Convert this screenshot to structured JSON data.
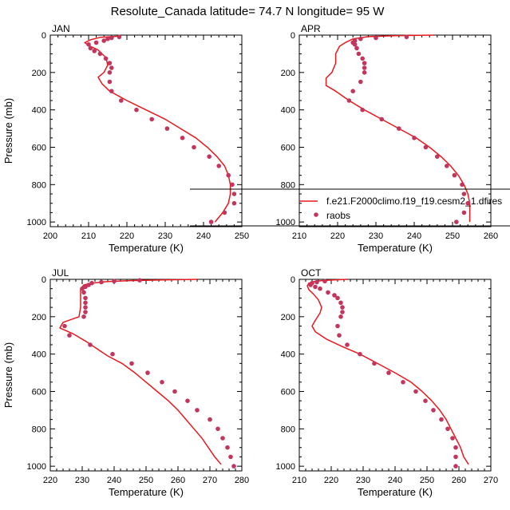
{
  "title": "Resolute_Canada  latitude= 74.7 N longitude= 95 W",
  "colors": {
    "model": "#e8191e",
    "obs": "#c2355d",
    "axis": "#000000"
  },
  "legend": {
    "placement": "lower-right of APR panel",
    "model_label": "f.e21.F2000climo.f19_f19.cesm2_1.dfires",
    "obs_label": "raobs"
  },
  "chart_data": [
    {
      "type": "line",
      "panel": "JAN",
      "xlabel": "Temperature (K)",
      "ylabel": "Pressure (mb)",
      "xlim": [
        200,
        250
      ],
      "xticks": [
        "200",
        "210",
        "220",
        "230",
        "240",
        "250"
      ],
      "ylim": [
        0,
        1025
      ],
      "yreversed": true,
      "yticks": [
        "0",
        "200",
        "400",
        "600",
        "800",
        "1000"
      ],
      "grid": false,
      "series": [
        {
          "name": "f.e21.F2000climo.f19_f19.cesm2_1.dfires",
          "kind": "line",
          "points": [
            [
              218,
              5
            ],
            [
              213,
              12
            ],
            [
              210.5,
              25
            ],
            [
              209,
              40
            ],
            [
              210,
              55
            ],
            [
              212.5,
              80
            ],
            [
              214.5,
              120
            ],
            [
              215,
              160
            ],
            [
              214,
              200
            ],
            [
              212.5,
              225
            ],
            [
              213.5,
              260
            ],
            [
              215.5,
              300
            ],
            [
              220,
              350
            ],
            [
              225,
              400
            ],
            [
              230,
              450
            ],
            [
              234,
              500
            ],
            [
              238,
              550
            ],
            [
              241,
              600
            ],
            [
              243.5,
              650
            ],
            [
              245.5,
              700
            ],
            [
              246.5,
              750
            ],
            [
              247,
              800
            ],
            [
              247,
              850
            ],
            [
              246.5,
              900
            ],
            [
              245,
              950
            ],
            [
              243,
              1000
            ]
          ]
        },
        {
          "name": "raobs",
          "kind": "scatter",
          "points": [
            [
              218,
              10
            ],
            [
              216,
              15
            ],
            [
              215,
              20
            ],
            [
              214,
              30
            ],
            [
              212,
              40
            ],
            [
              210,
              50
            ],
            [
              210.5,
              70
            ],
            [
              211.5,
              85
            ],
            [
              213,
              100
            ],
            [
              214.5,
              125
            ],
            [
              215.5,
              150
            ],
            [
              216,
              175
            ],
            [
              215.5,
              200
            ],
            [
              215.5,
              250
            ],
            [
              216,
              300
            ],
            [
              218.5,
              350
            ],
            [
              222.5,
              400
            ],
            [
              226.5,
              450
            ],
            [
              230.5,
              500
            ],
            [
              234.5,
              550
            ],
            [
              237.5,
              600
            ],
            [
              241.5,
              650
            ],
            [
              244,
              700
            ],
            [
              246.5,
              750
            ],
            [
              247.5,
              800
            ],
            [
              248,
              850
            ],
            [
              248,
              900
            ],
            [
              245.5,
              950
            ],
            [
              242,
              1000
            ]
          ]
        }
      ]
    },
    {
      "type": "line",
      "panel": "APR",
      "xlabel": "Temperature (K)",
      "ylabel": "",
      "xlim": [
        210,
        260
      ],
      "xticks": [
        "210",
        "220",
        "230",
        "240",
        "250",
        "260"
      ],
      "ylim": [
        0,
        1025
      ],
      "yreversed": true,
      "yticks": [
        "0",
        "200",
        "400",
        "600",
        "800",
        "1000"
      ],
      "grid": false,
      "series": [
        {
          "name": "f.e21.F2000climo.f19_f19.cesm2_1.dfires",
          "kind": "line",
          "points": [
            [
              245,
              0
            ],
            [
              235,
              3
            ],
            [
              228,
              8
            ],
            [
              224,
              20
            ],
            [
              222,
              40
            ],
            [
              220.5,
              60
            ],
            [
              219.5,
              100
            ],
            [
              219.5,
              150
            ],
            [
              218.5,
              200
            ],
            [
              217,
              230
            ],
            [
              217,
              270
            ],
            [
              219.5,
              300
            ],
            [
              223,
              350
            ],
            [
              227,
              400
            ],
            [
              231.5,
              450
            ],
            [
              236,
              500
            ],
            [
              240.5,
              550
            ],
            [
              244,
              600
            ],
            [
              247,
              650
            ],
            [
              249.5,
              700
            ],
            [
              251.5,
              750
            ],
            [
              253,
              800
            ],
            [
              254,
              850
            ],
            [
              254.5,
              900
            ],
            [
              254.5,
              950
            ],
            [
              254.5,
              1000
            ]
          ]
        },
        {
          "name": "raobs",
          "kind": "scatter",
          "points": [
            [
              238,
              10
            ],
            [
              230,
              15
            ],
            [
              226,
              20
            ],
            [
              224.5,
              30
            ],
            [
              224,
              40
            ],
            [
              224.5,
              50
            ],
            [
              225,
              70
            ],
            [
              225.5,
              100
            ],
            [
              226.5,
              125
            ],
            [
              227,
              150
            ],
            [
              227,
              175
            ],
            [
              227,
              200
            ],
            [
              226,
              250
            ],
            [
              224,
              300
            ],
            [
              223,
              350
            ],
            [
              226.5,
              400
            ],
            [
              231.5,
              450
            ],
            [
              236,
              500
            ],
            [
              240,
              550
            ],
            [
              243,
              600
            ],
            [
              246,
              650
            ],
            [
              248.5,
              700
            ],
            [
              250.5,
              750
            ],
            [
              252.5,
              800
            ],
            [
              253,
              850
            ],
            [
              254,
              900
            ],
            [
              253,
              950
            ],
            [
              251,
              1000
            ]
          ]
        }
      ]
    },
    {
      "type": "line",
      "panel": "JUL",
      "xlabel": "Temperature (K)",
      "ylabel": "Pressure (mb)",
      "xlim": [
        220,
        280
      ],
      "xticks": [
        "220",
        "230",
        "240",
        "250",
        "260",
        "270",
        "280"
      ],
      "ylim": [
        0,
        1025
      ],
      "yreversed": true,
      "yticks": [
        "0",
        "200",
        "400",
        "600",
        "800",
        "1000"
      ],
      "grid": false,
      "series": [
        {
          "name": "f.e21.F2000climo.f19_f19.cesm2_1.dfires",
          "kind": "line",
          "points": [
            [
              266,
              0
            ],
            [
              255,
              3
            ],
            [
              245,
              7
            ],
            [
              238,
              12
            ],
            [
              233,
              20
            ],
            [
              230.5,
              30
            ],
            [
              229.5,
              50
            ],
            [
              229.5,
              100
            ],
            [
              229.5,
              150
            ],
            [
              229,
              200
            ],
            [
              224,
              230
            ],
            [
              223,
              260
            ],
            [
              227,
              290
            ],
            [
              231,
              330
            ],
            [
              234.5,
              370
            ],
            [
              238,
              410
            ],
            [
              242.5,
              450
            ],
            [
              246.5,
              500
            ],
            [
              250,
              550
            ],
            [
              253.5,
              600
            ],
            [
              257,
              650
            ],
            [
              260,
              700
            ],
            [
              262.5,
              750
            ],
            [
              265,
              800
            ],
            [
              267.5,
              850
            ],
            [
              269.5,
              900
            ],
            [
              271.5,
              950
            ],
            [
              273.5,
              990
            ]
          ]
        },
        {
          "name": "raobs",
          "kind": "scatter",
          "points": [
            [
              248,
              5
            ],
            [
              240,
              10
            ],
            [
              236,
              15
            ],
            [
              233,
              20
            ],
            [
              232,
              30
            ],
            [
              231,
              40
            ],
            [
              230,
              50
            ],
            [
              230.5,
              70
            ],
            [
              231,
              100
            ],
            [
              231,
              125
            ],
            [
              231,
              150
            ],
            [
              231,
              175
            ],
            [
              230.5,
              200
            ],
            [
              224.5,
              250
            ],
            [
              226,
              300
            ],
            [
              232.5,
              350
            ],
            [
              239.5,
              400
            ],
            [
              245.5,
              450
            ],
            [
              250.5,
              500
            ],
            [
              255,
              550
            ],
            [
              259,
              600
            ],
            [
              263,
              650
            ],
            [
              266,
              700
            ],
            [
              270,
              750
            ],
            [
              272.5,
              800
            ],
            [
              274,
              850
            ],
            [
              275.5,
              900
            ],
            [
              276.5,
              950
            ],
            [
              277.5,
              1000
            ]
          ]
        }
      ]
    },
    {
      "type": "line",
      "panel": "OCT",
      "xlabel": "Temperature (K)",
      "ylabel": "",
      "xlim": [
        210,
        270
      ],
      "xticks": [
        "210",
        "220",
        "230",
        "240",
        "250",
        "260",
        "270"
      ],
      "ylim": [
        0,
        1025
      ],
      "yreversed": true,
      "yticks": [
        "0",
        "200",
        "400",
        "600",
        "800",
        "1000"
      ],
      "grid": false,
      "series": [
        {
          "name": "f.e21.F2000climo.f19_f19.cesm2_1.dfires",
          "kind": "line",
          "points": [
            [
              225,
              0
            ],
            [
              218,
              5
            ],
            [
              214.5,
              12
            ],
            [
              213,
              20
            ],
            [
              212.5,
              35
            ],
            [
              213,
              55
            ],
            [
              214.5,
              80
            ],
            [
              216,
              110
            ],
            [
              217,
              150
            ],
            [
              216.5,
              180
            ],
            [
              215,
              220
            ],
            [
              214,
              250
            ],
            [
              215,
              280
            ],
            [
              218.5,
              320
            ],
            [
              223.5,
              360
            ],
            [
              229,
              400
            ],
            [
              234.5,
              450
            ],
            [
              240,
              500
            ],
            [
              245,
              550
            ],
            [
              248.5,
              600
            ],
            [
              251.5,
              650
            ],
            [
              254,
              700
            ],
            [
              256,
              750
            ],
            [
              257.5,
              800
            ],
            [
              259,
              850
            ],
            [
              260.5,
              900
            ],
            [
              261.5,
              950
            ],
            [
              263,
              990
            ]
          ]
        },
        {
          "name": "raobs",
          "kind": "scatter",
          "points": [
            [
              218,
              10
            ],
            [
              215.5,
              15
            ],
            [
              214,
              20
            ],
            [
              213.5,
              30
            ],
            [
              215,
              40
            ],
            [
              216.5,
              50
            ],
            [
              219,
              70
            ],
            [
              221,
              85
            ],
            [
              222,
              100
            ],
            [
              223,
              125
            ],
            [
              223.5,
              150
            ],
            [
              223.5,
              175
            ],
            [
              223,
              200
            ],
            [
              222,
              250
            ],
            [
              222.5,
              300
            ],
            [
              225,
              350
            ],
            [
              229,
              400
            ],
            [
              233.5,
              450
            ],
            [
              238,
              500
            ],
            [
              242.5,
              550
            ],
            [
              246.5,
              600
            ],
            [
              249.5,
              650
            ],
            [
              252,
              700
            ],
            [
              254.5,
              750
            ],
            [
              256.5,
              800
            ],
            [
              258,
              850
            ],
            [
              259,
              900
            ],
            [
              259,
              950
            ],
            [
              259,
              1000
            ]
          ]
        }
      ]
    }
  ]
}
